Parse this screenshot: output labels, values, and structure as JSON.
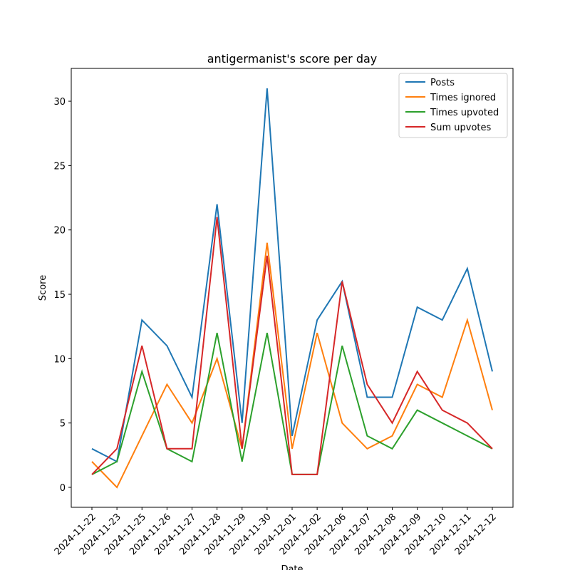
{
  "chart_data": {
    "type": "line",
    "title": "antigermanist's score per day",
    "xlabel": "Date",
    "ylabel": "Score",
    "categories": [
      "2024-11-22",
      "2024-11-23",
      "2024-11-25",
      "2024-11-26",
      "2024-11-27",
      "2024-11-28",
      "2024-11-29",
      "2024-11-30",
      "2024-12-01",
      "2024-12-02",
      "2024-12-06",
      "2024-12-07",
      "2024-12-08",
      "2024-12-09",
      "2024-12-10",
      "2024-12-11",
      "2024-12-12"
    ],
    "series": [
      {
        "name": "Posts",
        "color": "#1f77b4",
        "values": [
          3,
          2,
          13,
          11,
          7,
          22,
          5,
          31,
          4,
          13,
          16,
          7,
          7,
          14,
          13,
          17,
          9
        ]
      },
      {
        "name": "Times ignored",
        "color": "#ff7f0e",
        "values": [
          2,
          0,
          4,
          8,
          5,
          10,
          3,
          19,
          3,
          12,
          5,
          3,
          4,
          8,
          7,
          13,
          6
        ]
      },
      {
        "name": "Times upvoted",
        "color": "#2ca02c",
        "values": [
          1,
          2,
          9,
          3,
          2,
          12,
          2,
          12,
          1,
          1,
          11,
          4,
          3,
          6,
          5,
          4,
          3
        ]
      },
      {
        "name": "Sum upvotes",
        "color": "#d62728",
        "values": [
          1,
          3,
          11,
          3,
          3,
          21,
          3,
          18,
          1,
          1,
          16,
          8,
          5,
          9,
          6,
          5,
          3
        ]
      }
    ],
    "ylim": [
      -1.55,
      32.55
    ],
    "yticks": [
      0,
      5,
      10,
      15,
      20,
      25,
      30
    ],
    "legend": "upper right"
  }
}
